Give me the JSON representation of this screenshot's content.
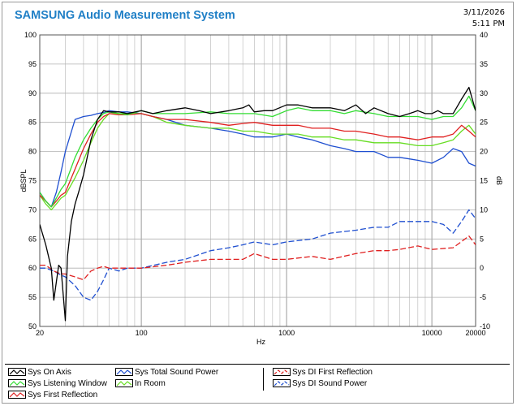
{
  "header": {
    "title": "SAMSUNG Audio Measurement System",
    "date": "3/11/2026",
    "time": "5:11 PM"
  },
  "legend": {
    "items": [
      {
        "label": "Sys On Axis",
        "color": "#000000",
        "dashed": false
      },
      {
        "label": "Sys Listening Window",
        "color": "#33dd33",
        "dashed": false
      },
      {
        "label": "Sys First Reflection",
        "color": "#e02020",
        "dashed": false
      },
      {
        "label": "Sys Total Sound Power",
        "color": "#1f4fd0",
        "dashed": false
      },
      {
        "label": "In Room",
        "color": "#66dd22",
        "dashed": false
      },
      {
        "label": "Sys DI First Reflection",
        "color": "#e02020",
        "dashed": true
      },
      {
        "label": "Sys DI Sound Power",
        "color": "#1f4fd0",
        "dashed": true
      }
    ]
  },
  "chart_data": {
    "type": "line",
    "xscale": "log",
    "xlim": [
      20,
      20000
    ],
    "ylim": [
      50,
      100
    ],
    "y2lim": [
      -10,
      40
    ],
    "xlabel": "Hz",
    "ylabel": "dBSPL",
    "y2label": "dB",
    "grid": true,
    "x_ticks": [
      "20",
      "100",
      "1000",
      "10000",
      "20000"
    ],
    "y_ticks": [
      "100",
      "95",
      "90",
      "85",
      "80",
      "75",
      "70",
      "65",
      "60",
      "55",
      "50"
    ],
    "y2_ticks": [
      "40",
      "35",
      "30",
      "25",
      "20",
      "15",
      "10",
      "5",
      "0",
      "-5",
      "-10"
    ],
    "series": [
      {
        "name": "Sys On Axis",
        "axis": "left",
        "color": "#000000",
        "dashed": false,
        "x": [
          20,
          22,
          24,
          25,
          27,
          28,
          30,
          31,
          33,
          35,
          37,
          40,
          45,
          50,
          55,
          60,
          70,
          80,
          100,
          120,
          150,
          200,
          250,
          300,
          400,
          500,
          550,
          600,
          700,
          800,
          1000,
          1200,
          1500,
          2000,
          2500,
          3000,
          3500,
          4000,
          5000,
          6000,
          7000,
          8000,
          9000,
          10000,
          11000,
          12000,
          14000,
          16000,
          18000,
          20000
        ],
        "y": [
          67.5,
          64,
          60,
          54.5,
          60.5,
          60,
          51,
          62,
          68,
          71,
          73,
          76,
          82,
          85.5,
          87,
          86.8,
          86.8,
          86.5,
          87,
          86.5,
          87,
          87.5,
          87,
          86.5,
          87,
          87.5,
          88,
          86.8,
          87,
          87,
          88,
          88,
          87.5,
          87.5,
          87,
          88,
          86.5,
          87.5,
          86.5,
          86,
          86.5,
          87,
          86.5,
          86.5,
          87,
          86.5,
          86.5,
          89,
          91,
          87
        ]
      },
      {
        "name": "Sys Listening Window",
        "axis": "left",
        "color": "#33dd33",
        "dashed": false,
        "x": [
          20,
          22,
          24,
          26,
          28,
          30,
          35,
          40,
          45,
          50,
          55,
          60,
          70,
          80,
          100,
          120,
          150,
          200,
          300,
          400,
          500,
          600,
          800,
          1000,
          1200,
          1500,
          2000,
          2500,
          3000,
          4000,
          5000,
          6000,
          8000,
          10000,
          12000,
          14000,
          16000,
          18000,
          20000
        ],
        "y": [
          73,
          71.5,
          70.5,
          72,
          73.5,
          74.5,
          79,
          82,
          84,
          85.5,
          86.5,
          86.8,
          86.5,
          86.3,
          87,
          86.5,
          86.5,
          86.5,
          86.8,
          86.5,
          86.5,
          86.5,
          86,
          87,
          87.5,
          87,
          87,
          86.5,
          87,
          86.5,
          86,
          86,
          86,
          85.5,
          86,
          86,
          87.5,
          89.5,
          87
        ]
      },
      {
        "name": "Sys First Reflection",
        "axis": "left",
        "color": "#e02020",
        "dashed": false,
        "x": [
          20,
          22,
          24,
          26,
          28,
          30,
          35,
          40,
          45,
          50,
          55,
          60,
          70,
          80,
          100,
          120,
          150,
          200,
          300,
          400,
          500,
          600,
          800,
          1000,
          1200,
          1500,
          2000,
          2500,
          3000,
          4000,
          5000,
          6000,
          8000,
          10000,
          12000,
          14000,
          16000,
          18000,
          20000
        ],
        "y": [
          72.5,
          71.5,
          70.5,
          71.5,
          72.5,
          73,
          77,
          80.5,
          83,
          85,
          86,
          86.5,
          86.3,
          86.3,
          86.5,
          86,
          85.5,
          85.5,
          85,
          84.5,
          84.8,
          85,
          84.5,
          84.5,
          84.5,
          84,
          84,
          83.5,
          83.5,
          83,
          82.5,
          82.5,
          82,
          82.5,
          82.5,
          83,
          84.5,
          83.5,
          82.5
        ]
      },
      {
        "name": "Sys Total Sound Power",
        "axis": "left",
        "color": "#1f4fd0",
        "dashed": false,
        "x": [
          20,
          22,
          24,
          26,
          28,
          30,
          35,
          40,
          45,
          50,
          55,
          60,
          70,
          80,
          100,
          120,
          150,
          200,
          300,
          400,
          500,
          600,
          800,
          1000,
          1200,
          1500,
          2000,
          2500,
          3000,
          4000,
          5000,
          6000,
          8000,
          10000,
          12000,
          14000,
          16000,
          18000,
          20000
        ],
        "y": [
          73,
          71.5,
          70.5,
          73,
          76.5,
          80,
          85.5,
          86,
          86.2,
          86.5,
          86.7,
          87,
          86.8,
          86.8,
          86.5,
          86,
          85.5,
          84.5,
          84,
          83.5,
          83,
          82.5,
          82.5,
          83,
          82.5,
          82,
          81,
          80.5,
          80,
          80,
          79,
          79,
          78.5,
          78,
          79,
          80.5,
          80,
          78,
          77.5
        ]
      },
      {
        "name": "In Room",
        "axis": "left",
        "color": "#66dd22",
        "dashed": false,
        "x": [
          20,
          22,
          24,
          26,
          28,
          30,
          35,
          40,
          45,
          50,
          55,
          60,
          70,
          80,
          100,
          120,
          150,
          200,
          300,
          400,
          500,
          600,
          800,
          1000,
          1200,
          1500,
          2000,
          2500,
          3000,
          4000,
          5000,
          6000,
          8000,
          10000,
          12000,
          14000,
          16000,
          18000,
          20000
        ],
        "y": [
          72.5,
          71,
          70,
          71,
          72,
          72.5,
          75.5,
          78.5,
          81.5,
          84,
          85.5,
          86.5,
          86.5,
          86.5,
          86.5,
          86,
          85,
          84.5,
          84,
          84,
          83.5,
          83.5,
          83,
          83,
          83,
          82.5,
          82.5,
          82,
          82,
          81.5,
          81.5,
          81.5,
          81,
          81,
          81.5,
          82,
          83.5,
          84.5,
          83
        ]
      },
      {
        "name": "Sys DI First Reflection",
        "axis": "right",
        "color": "#e02020",
        "dashed": true,
        "x": [
          20,
          22,
          25,
          28,
          30,
          35,
          40,
          45,
          50,
          55,
          60,
          70,
          80,
          100,
          150,
          200,
          300,
          400,
          500,
          600,
          800,
          1000,
          1500,
          2000,
          3000,
          4000,
          5000,
          6000,
          8000,
          10000,
          14000,
          18000,
          20000
        ],
        "y": [
          0.5,
          0.5,
          -0.5,
          -1,
          -1,
          -1.5,
          -2,
          -0.5,
          0,
          0.3,
          0,
          0,
          0,
          0,
          0.5,
          1,
          1.5,
          1.5,
          1.5,
          2.5,
          1.5,
          1.5,
          2,
          1.5,
          2.5,
          3,
          3,
          3.2,
          3.8,
          3.2,
          3.5,
          5.5,
          4
        ]
      },
      {
        "name": "Sys DI Sound Power",
        "axis": "right",
        "color": "#1f4fd0",
        "dashed": true,
        "x": [
          20,
          22,
          25,
          28,
          30,
          35,
          40,
          45,
          50,
          55,
          60,
          70,
          80,
          100,
          150,
          200,
          300,
          400,
          500,
          600,
          800,
          1000,
          1500,
          2000,
          3000,
          4000,
          5000,
          6000,
          8000,
          10000,
          12000,
          14000,
          16000,
          18000,
          20000
        ],
        "y": [
          0,
          0,
          -0.5,
          -1.2,
          -1.5,
          -3,
          -5,
          -5.5,
          -4,
          -2,
          0,
          -0.5,
          0,
          0,
          1,
          1.5,
          3,
          3.5,
          4,
          4.5,
          4,
          4.5,
          5,
          6,
          6.5,
          7,
          7,
          8,
          8,
          8,
          7.5,
          6,
          8,
          10,
          8.5
        ]
      }
    ]
  }
}
